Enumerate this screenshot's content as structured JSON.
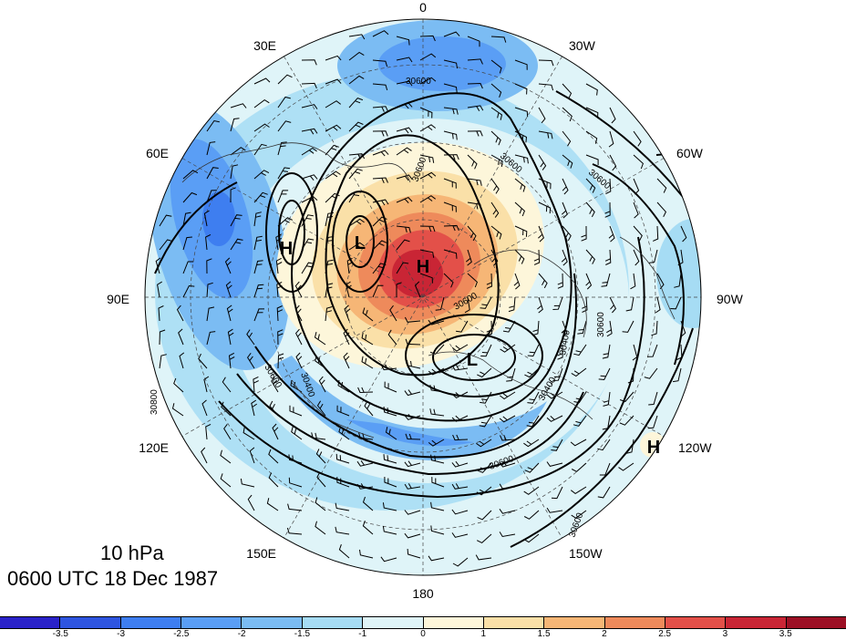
{
  "title": {
    "level": "10 hPa",
    "time": "0600 UTC 18 Dec 1987"
  },
  "longitude_labels": [
    "0",
    "30W",
    "60W",
    "90W",
    "120W",
    "150W",
    "180",
    "150E",
    "120E",
    "90E",
    "60E",
    "30E"
  ],
  "pressure_centers": [
    {
      "letter": "H",
      "type": "high"
    },
    {
      "letter": "H",
      "type": "high"
    },
    {
      "letter": "L",
      "type": "low"
    },
    {
      "letter": "L",
      "type": "low"
    },
    {
      "letter": "H",
      "type": "high"
    }
  ],
  "contour_labels": [
    "30600",
    "30600",
    "30600",
    "30600",
    "30400",
    "30400",
    "30800",
    "30600",
    "30600",
    "30600",
    "30400",
    "30600",
    "30600"
  ],
  "colorbar": {
    "labels": [
      "-3.5",
      "-3",
      "-2.5",
      "-2",
      "-1.5",
      "-1",
      "0",
      "1",
      "1.5",
      "2",
      "2.5",
      "3",
      "3.5"
    ],
    "colors": [
      "#2a22c9",
      "#2e55e0",
      "#3e7ef0",
      "#5a9ef5",
      "#7bbcf3",
      "#a6dcf4",
      "#dff4f8",
      "#fdf6da",
      "#fae0a8",
      "#f6b676",
      "#ee8a5b",
      "#e35049",
      "#c92535",
      "#9c0f24"
    ]
  },
  "field_colors": {
    "ocean_light": "#dff4f8",
    "cyan": "#a6dcf4",
    "light_blue": "#7bbcf3",
    "blue": "#5a9ef5",
    "deep_blue": "#3e7ef0",
    "cream": "#fdf6da",
    "peach": "#fae0a8",
    "orange": "#f6b676",
    "red_orange": "#ee8a5b",
    "red": "#e35049",
    "dark_red": "#c92535"
  }
}
